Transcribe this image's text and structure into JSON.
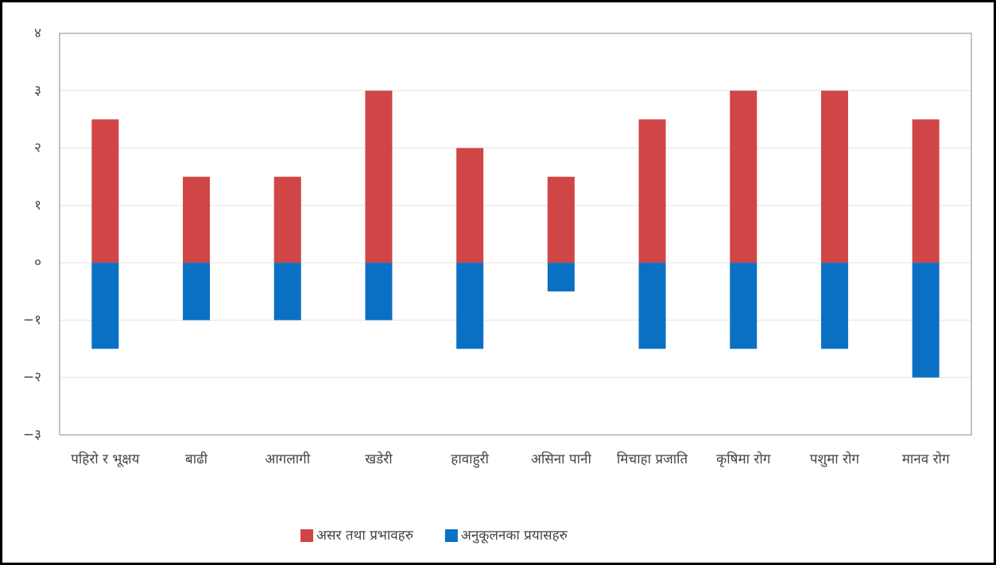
{
  "chart_data": {
    "type": "bar",
    "categories": [
      "पहिरो र भूक्षय",
      "बाढी",
      "आगलागी",
      "खडेरी",
      "हावाहुरी",
      "असिना पानी",
      "मिचाहा प्रजाति",
      "कृषिमा रोग",
      "पशुमा रोग",
      "मानव रोग"
    ],
    "series": [
      {
        "name": "असर तथा प्रभावहरु",
        "color": "#d04545",
        "values": [
          2.5,
          1.5,
          1.5,
          3,
          2,
          1.5,
          2.5,
          3,
          3,
          2.5
        ]
      },
      {
        "name": "अनुकूलनका प्रयासहरु",
        "color": "#0a70c4",
        "values": [
          -1.5,
          -1,
          -1,
          -1,
          -1.5,
          -0.5,
          -1.5,
          -1.5,
          -1.5,
          -2
        ]
      }
    ],
    "ylim": [
      -3,
      4
    ],
    "yticks": [
      {
        "value": -3,
        "label": "−३"
      },
      {
        "value": -2,
        "label": "−२"
      },
      {
        "value": -1,
        "label": "−१"
      },
      {
        "value": 0,
        "label": "०"
      },
      {
        "value": 1,
        "label": "१"
      },
      {
        "value": 2,
        "label": "२"
      },
      {
        "value": 3,
        "label": "३"
      },
      {
        "value": 4,
        "label": "४"
      }
    ],
    "grid": true,
    "stacked": true,
    "legend": "bottom"
  }
}
